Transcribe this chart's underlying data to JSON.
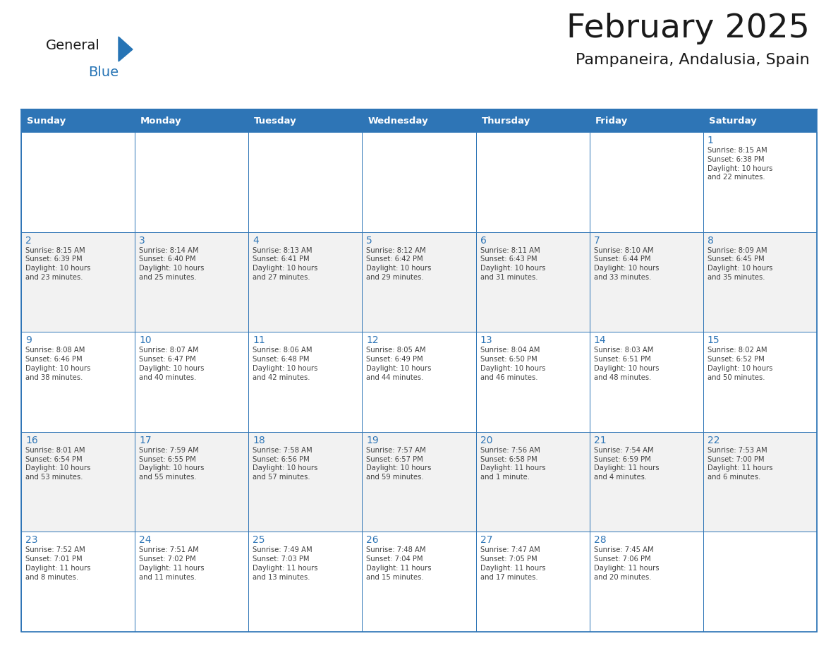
{
  "title": "February 2025",
  "subtitle": "Pampaneira, Andalusia, Spain",
  "header_bg": "#2E75B6",
  "header_text_color": "#FFFFFF",
  "header_days": [
    "Sunday",
    "Monday",
    "Tuesday",
    "Wednesday",
    "Thursday",
    "Friday",
    "Saturday"
  ],
  "cell_border_color": "#2E75B6",
  "cell_bg_even": "#FFFFFF",
  "cell_bg_odd": "#F2F2F2",
  "day_number_color": "#2E75B6",
  "info_text_color": "#404040",
  "background_color": "#FFFFFF",
  "logo_general_color": "#1a1a1a",
  "logo_blue_color": "#2674B5",
  "title_color": "#1a1a1a",
  "subtitle_color": "#1a1a1a",
  "calendar_data": [
    [
      null,
      null,
      null,
      null,
      null,
      null,
      {
        "day": 1,
        "sunrise": "8:15 AM",
        "sunset": "6:38 PM",
        "daylight": "10 hours\nand 22 minutes."
      }
    ],
    [
      {
        "day": 2,
        "sunrise": "8:15 AM",
        "sunset": "6:39 PM",
        "daylight": "10 hours\nand 23 minutes."
      },
      {
        "day": 3,
        "sunrise": "8:14 AM",
        "sunset": "6:40 PM",
        "daylight": "10 hours\nand 25 minutes."
      },
      {
        "day": 4,
        "sunrise": "8:13 AM",
        "sunset": "6:41 PM",
        "daylight": "10 hours\nand 27 minutes."
      },
      {
        "day": 5,
        "sunrise": "8:12 AM",
        "sunset": "6:42 PM",
        "daylight": "10 hours\nand 29 minutes."
      },
      {
        "day": 6,
        "sunrise": "8:11 AM",
        "sunset": "6:43 PM",
        "daylight": "10 hours\nand 31 minutes."
      },
      {
        "day": 7,
        "sunrise": "8:10 AM",
        "sunset": "6:44 PM",
        "daylight": "10 hours\nand 33 minutes."
      },
      {
        "day": 8,
        "sunrise": "8:09 AM",
        "sunset": "6:45 PM",
        "daylight": "10 hours\nand 35 minutes."
      }
    ],
    [
      {
        "day": 9,
        "sunrise": "8:08 AM",
        "sunset": "6:46 PM",
        "daylight": "10 hours\nand 38 minutes."
      },
      {
        "day": 10,
        "sunrise": "8:07 AM",
        "sunset": "6:47 PM",
        "daylight": "10 hours\nand 40 minutes."
      },
      {
        "day": 11,
        "sunrise": "8:06 AM",
        "sunset": "6:48 PM",
        "daylight": "10 hours\nand 42 minutes."
      },
      {
        "day": 12,
        "sunrise": "8:05 AM",
        "sunset": "6:49 PM",
        "daylight": "10 hours\nand 44 minutes."
      },
      {
        "day": 13,
        "sunrise": "8:04 AM",
        "sunset": "6:50 PM",
        "daylight": "10 hours\nand 46 minutes."
      },
      {
        "day": 14,
        "sunrise": "8:03 AM",
        "sunset": "6:51 PM",
        "daylight": "10 hours\nand 48 minutes."
      },
      {
        "day": 15,
        "sunrise": "8:02 AM",
        "sunset": "6:52 PM",
        "daylight": "10 hours\nand 50 minutes."
      }
    ],
    [
      {
        "day": 16,
        "sunrise": "8:01 AM",
        "sunset": "6:54 PM",
        "daylight": "10 hours\nand 53 minutes."
      },
      {
        "day": 17,
        "sunrise": "7:59 AM",
        "sunset": "6:55 PM",
        "daylight": "10 hours\nand 55 minutes."
      },
      {
        "day": 18,
        "sunrise": "7:58 AM",
        "sunset": "6:56 PM",
        "daylight": "10 hours\nand 57 minutes."
      },
      {
        "day": 19,
        "sunrise": "7:57 AM",
        "sunset": "6:57 PM",
        "daylight": "10 hours\nand 59 minutes."
      },
      {
        "day": 20,
        "sunrise": "7:56 AM",
        "sunset": "6:58 PM",
        "daylight": "11 hours\nand 1 minute."
      },
      {
        "day": 21,
        "sunrise": "7:54 AM",
        "sunset": "6:59 PM",
        "daylight": "11 hours\nand 4 minutes."
      },
      {
        "day": 22,
        "sunrise": "7:53 AM",
        "sunset": "7:00 PM",
        "daylight": "11 hours\nand 6 minutes."
      }
    ],
    [
      {
        "day": 23,
        "sunrise": "7:52 AM",
        "sunset": "7:01 PM",
        "daylight": "11 hours\nand 8 minutes."
      },
      {
        "day": 24,
        "sunrise": "7:51 AM",
        "sunset": "7:02 PM",
        "daylight": "11 hours\nand 11 minutes."
      },
      {
        "day": 25,
        "sunrise": "7:49 AM",
        "sunset": "7:03 PM",
        "daylight": "11 hours\nand 13 minutes."
      },
      {
        "day": 26,
        "sunrise": "7:48 AM",
        "sunset": "7:04 PM",
        "daylight": "11 hours\nand 15 minutes."
      },
      {
        "day": 27,
        "sunrise": "7:47 AM",
        "sunset": "7:05 PM",
        "daylight": "11 hours\nand 17 minutes."
      },
      {
        "day": 28,
        "sunrise": "7:45 AM",
        "sunset": "7:06 PM",
        "daylight": "11 hours\nand 20 minutes."
      },
      null
    ]
  ]
}
